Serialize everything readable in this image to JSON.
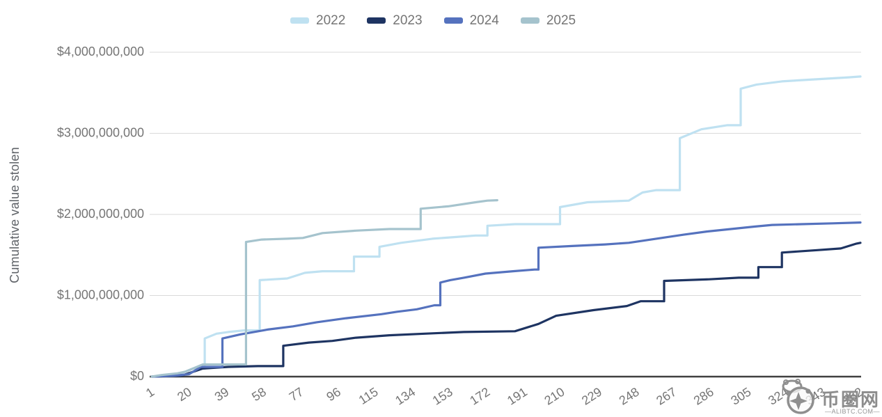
{
  "page": {
    "background": "#ffffff"
  },
  "y_axis": {
    "title": "Cumulative value stolen"
  },
  "legend": {
    "items": [
      {
        "label": "2022",
        "color": "#bfe1f1"
      },
      {
        "label": "2023",
        "color": "#1e3462"
      },
      {
        "label": "2024",
        "color": "#5572be"
      },
      {
        "label": "2025",
        "color": "#a5c3cd"
      }
    ]
  },
  "watermark": {
    "site_name": "币圈网",
    "domain": "—ALIBTC.COM—"
  },
  "chart_data": {
    "type": "line",
    "subtype": "cumulative-step",
    "title": "",
    "xlabel": "",
    "ylabel": "Cumulative value stolen",
    "value_unit": "USD_millions",
    "x_unit": "day_of_year",
    "xlim": [
      1,
      362
    ],
    "ylim": [
      0,
      4000
    ],
    "grid": "horizontal",
    "legend_position": "top",
    "x_ticks": [
      1,
      20,
      39,
      58,
      77,
      96,
      115,
      134,
      153,
      172,
      191,
      210,
      229,
      248,
      267,
      286,
      305,
      324,
      343,
      362
    ],
    "y_ticks": [
      {
        "value": 0,
        "label": "$0"
      },
      {
        "value": 1000,
        "label": "$1,000,000,000"
      },
      {
        "value": 2000,
        "label": "$2,000,000,000"
      },
      {
        "value": 3000,
        "label": "$3,000,000,000"
      },
      {
        "value": 4000,
        "label": "$4,000,000,000"
      }
    ],
    "series": [
      {
        "name": "2022",
        "color": "#bfe1f1",
        "points": [
          [
            1,
            0
          ],
          [
            10,
            10
          ],
          [
            14,
            30
          ],
          [
            18,
            60
          ],
          [
            22,
            100
          ],
          [
            28,
            470
          ],
          [
            34,
            530
          ],
          [
            40,
            550
          ],
          [
            48,
            570
          ],
          [
            56,
            1190
          ],
          [
            70,
            1210
          ],
          [
            79,
            1280
          ],
          [
            88,
            1300
          ],
          [
            104,
            1480
          ],
          [
            117,
            1600
          ],
          [
            128,
            1650
          ],
          [
            144,
            1700
          ],
          [
            155,
            1720
          ],
          [
            166,
            1740
          ],
          [
            172,
            1860
          ],
          [
            186,
            1880
          ],
          [
            209,
            2090
          ],
          [
            223,
            2150
          ],
          [
            244,
            2170
          ],
          [
            251,
            2270
          ],
          [
            258,
            2300
          ],
          [
            270,
            2940
          ],
          [
            281,
            3050
          ],
          [
            294,
            3100
          ],
          [
            301,
            3550
          ],
          [
            309,
            3600
          ],
          [
            322,
            3640
          ],
          [
            335,
            3660
          ],
          [
            356,
            3690
          ],
          [
            362,
            3700
          ]
        ]
      },
      {
        "name": "2023",
        "color": "#1e3462",
        "points": [
          [
            1,
            0
          ],
          [
            16,
            10
          ],
          [
            27,
            100
          ],
          [
            40,
            120
          ],
          [
            55,
            130
          ],
          [
            68,
            380
          ],
          [
            81,
            420
          ],
          [
            93,
            440
          ],
          [
            105,
            480
          ],
          [
            122,
            510
          ],
          [
            140,
            530
          ],
          [
            160,
            550
          ],
          [
            186,
            560
          ],
          [
            198,
            650
          ],
          [
            207,
            750
          ],
          [
            226,
            820
          ],
          [
            243,
            870
          ],
          [
            250,
            930
          ],
          [
            262,
            1180
          ],
          [
            285,
            1200
          ],
          [
            300,
            1220
          ],
          [
            310,
            1350
          ],
          [
            322,
            1530
          ],
          [
            340,
            1560
          ],
          [
            352,
            1580
          ],
          [
            360,
            1640
          ],
          [
            362,
            1650
          ]
        ]
      },
      {
        "name": "2024",
        "color": "#5572be",
        "points": [
          [
            1,
            0
          ],
          [
            12,
            10
          ],
          [
            20,
            30
          ],
          [
            26,
            120
          ],
          [
            37,
            470
          ],
          [
            46,
            520
          ],
          [
            60,
            580
          ],
          [
            73,
            620
          ],
          [
            85,
            670
          ],
          [
            100,
            720
          ],
          [
            118,
            770
          ],
          [
            126,
            800
          ],
          [
            136,
            830
          ],
          [
            145,
            880
          ],
          [
            148,
            1160
          ],
          [
            153,
            1190
          ],
          [
            160,
            1220
          ],
          [
            171,
            1270
          ],
          [
            185,
            1300
          ],
          [
            196,
            1320
          ],
          [
            198,
            1590
          ],
          [
            215,
            1610
          ],
          [
            232,
            1630
          ],
          [
            244,
            1650
          ],
          [
            258,
            1700
          ],
          [
            272,
            1750
          ],
          [
            284,
            1790
          ],
          [
            296,
            1820
          ],
          [
            308,
            1850
          ],
          [
            317,
            1870
          ],
          [
            332,
            1880
          ],
          [
            348,
            1890
          ],
          [
            362,
            1900
          ]
        ]
      },
      {
        "name": "2025",
        "color": "#a5c3cd",
        "points": [
          [
            1,
            0
          ],
          [
            6,
            20
          ],
          [
            14,
            40
          ],
          [
            18,
            60
          ],
          [
            22,
            100
          ],
          [
            27,
            150
          ],
          [
            49,
            1660
          ],
          [
            57,
            1690
          ],
          [
            70,
            1700
          ],
          [
            78,
            1710
          ],
          [
            88,
            1770
          ],
          [
            105,
            1800
          ],
          [
            122,
            1820
          ],
          [
            138,
            2070
          ],
          [
            152,
            2100
          ],
          [
            166,
            2150
          ],
          [
            172,
            2170
          ],
          [
            177,
            2175
          ]
        ]
      }
    ]
  }
}
